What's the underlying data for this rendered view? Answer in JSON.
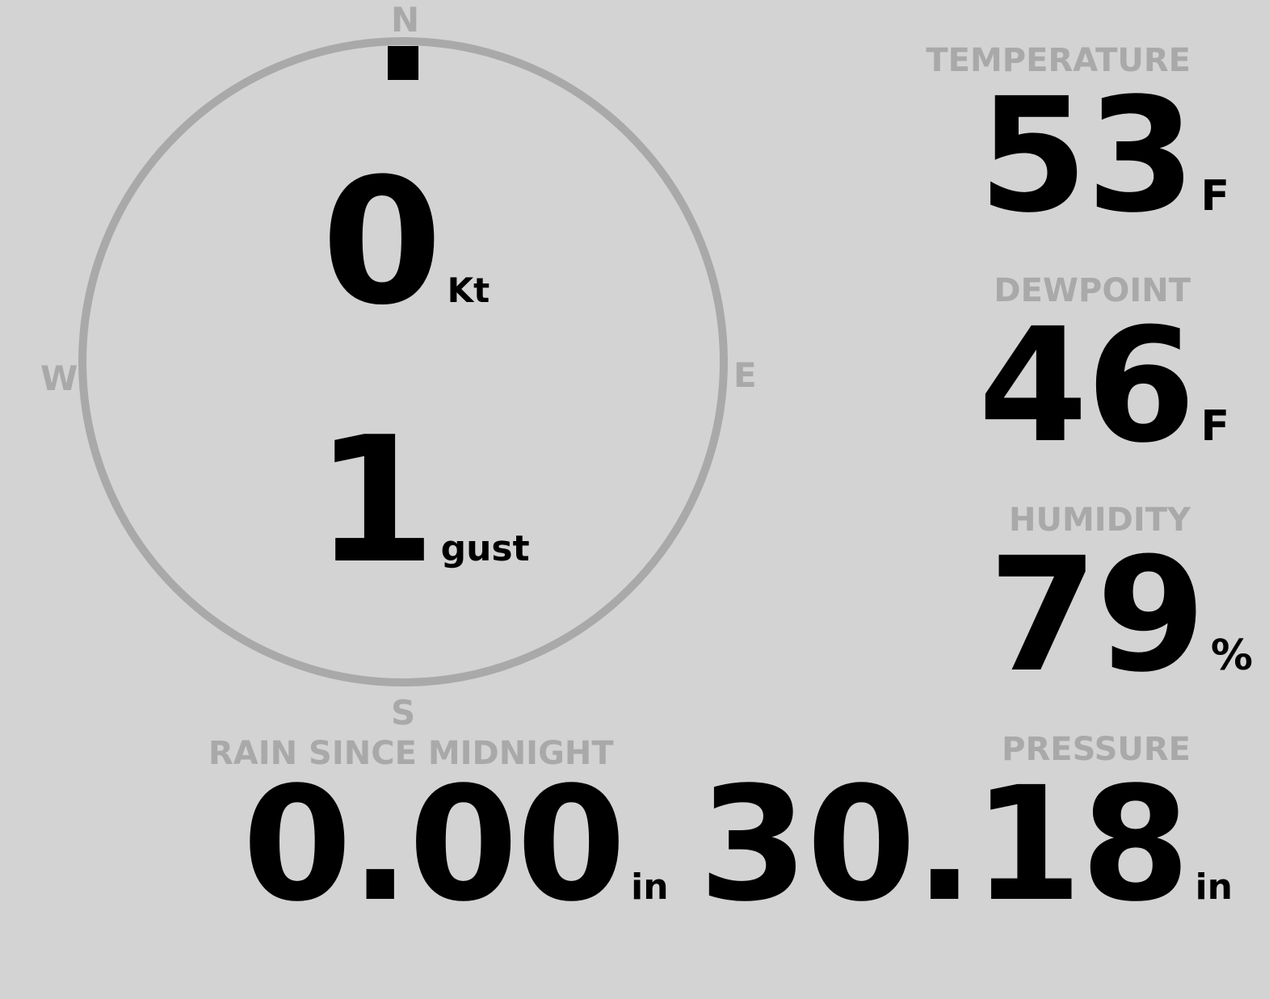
{
  "wind": {
    "compass": {
      "north": "N",
      "east": "E",
      "south": "S",
      "west": "W"
    },
    "direction_deg": 0,
    "speed": "0",
    "speed_unit": "Kt",
    "gust": "1",
    "gust_unit": "gust"
  },
  "temperature": {
    "label": "TEMPERATURE",
    "value": "53",
    "unit": "F"
  },
  "dewpoint": {
    "label": "DEWPOINT",
    "value": "46",
    "unit": "F"
  },
  "humidity": {
    "label": "HUMIDITY",
    "value": "79",
    "unit": "%"
  },
  "pressure": {
    "label": "PRESSURE",
    "value": "30.18",
    "unit": "in"
  },
  "rain": {
    "label": "RAIN SINCE MIDNIGHT",
    "value": "0.00",
    "unit": "in"
  },
  "colors": {
    "background": "#d3d3d3",
    "label": "#a9a9a9",
    "value": "#000000"
  }
}
